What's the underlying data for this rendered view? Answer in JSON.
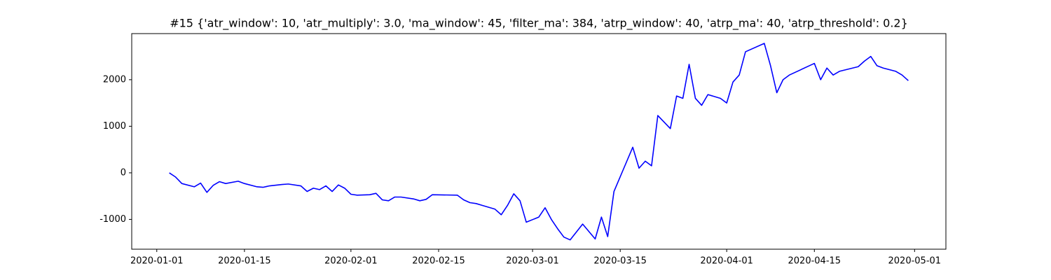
{
  "chart_data": {
    "type": "line",
    "title": "#15 {'atr_window': 10, 'atr_multiply': 3.0, 'ma_window': 45, 'filter_ma': 384, 'atrp_window': 40, 'atrp_ma': 40, 'atrp_threshold': 0.2}",
    "x": [
      "2020-01-03",
      "2020-01-04",
      "2020-01-05",
      "2020-01-07",
      "2020-01-08",
      "2020-01-09",
      "2020-01-10",
      "2020-01-11",
      "2020-01-12",
      "2020-01-14",
      "2020-01-15",
      "2020-01-17",
      "2020-01-18",
      "2020-01-19",
      "2020-01-21",
      "2020-01-22",
      "2020-01-24",
      "2020-01-25",
      "2020-01-26",
      "2020-01-27",
      "2020-01-28",
      "2020-01-29",
      "2020-01-30",
      "2020-01-31",
      "2020-02-01",
      "2020-02-02",
      "2020-02-04",
      "2020-02-05",
      "2020-02-06",
      "2020-02-07",
      "2020-02-08",
      "2020-02-09",
      "2020-02-11",
      "2020-02-12",
      "2020-02-13",
      "2020-02-14",
      "2020-02-18",
      "2020-02-19",
      "2020-02-20",
      "2020-02-21",
      "2020-02-22",
      "2020-02-23",
      "2020-02-24",
      "2020-02-25",
      "2020-02-26",
      "2020-02-27",
      "2020-02-28",
      "2020-02-29",
      "2020-03-02",
      "2020-03-03",
      "2020-03-04",
      "2020-03-05",
      "2020-03-06",
      "2020-03-07",
      "2020-03-09",
      "2020-03-11",
      "2020-03-12",
      "2020-03-13",
      "2020-03-14",
      "2020-03-17",
      "2020-03-18",
      "2020-03-19",
      "2020-03-20",
      "2020-03-21",
      "2020-03-23",
      "2020-03-24",
      "2020-03-25",
      "2020-03-26",
      "2020-03-27",
      "2020-03-28",
      "2020-03-29",
      "2020-03-31",
      "2020-04-01",
      "2020-04-02",
      "2020-04-03",
      "2020-04-04",
      "2020-04-07",
      "2020-04-08",
      "2020-04-09",
      "2020-04-10",
      "2020-04-11",
      "2020-04-15",
      "2020-04-16",
      "2020-04-17",
      "2020-04-18",
      "2020-04-19",
      "2020-04-22",
      "2020-04-23",
      "2020-04-24",
      "2020-04-25",
      "2020-04-26",
      "2020-04-28",
      "2020-04-29",
      "2020-04-30"
    ],
    "series": [
      {
        "color": "#0000ff",
        "values": [
          0,
          -90,
          -230,
          -300,
          -220,
          -420,
          -270,
          -190,
          -230,
          -180,
          -230,
          -300,
          -310,
          -280,
          -250,
          -240,
          -280,
          -400,
          -330,
          -360,
          -280,
          -400,
          -260,
          -330,
          -460,
          -480,
          -470,
          -440,
          -580,
          -600,
          -520,
          -520,
          -560,
          -600,
          -570,
          -470,
          -480,
          -580,
          -640,
          -660,
          -700,
          -740,
          -780,
          -900,
          -700,
          -450,
          -600,
          -1060,
          -950,
          -750,
          -1000,
          -1200,
          -1380,
          -1440,
          -1100,
          -1420,
          -950,
          -1370,
          -400,
          550,
          100,
          250,
          150,
          1230,
          950,
          1650,
          1600,
          2330,
          1600,
          1450,
          1680,
          1600,
          1500,
          1950,
          2100,
          2600,
          2780,
          2300,
          1720,
          2000,
          2100,
          2350,
          2000,
          2250,
          2100,
          2180,
          2280,
          2400,
          2500,
          2300,
          2250,
          2180,
          2100,
          1980
        ]
      }
    ],
    "xlim": [
      "2019-12-28",
      "2020-05-06"
    ],
    "xticks": [
      "2020-01-01",
      "2020-01-15",
      "2020-02-01",
      "2020-02-15",
      "2020-03-01",
      "2020-03-15",
      "2020-04-01",
      "2020-04-15",
      "2020-05-01"
    ],
    "ylim": [
      -1640,
      2990
    ],
    "yticks": [
      -1000,
      0,
      1000,
      2000
    ],
    "grid": false
  }
}
